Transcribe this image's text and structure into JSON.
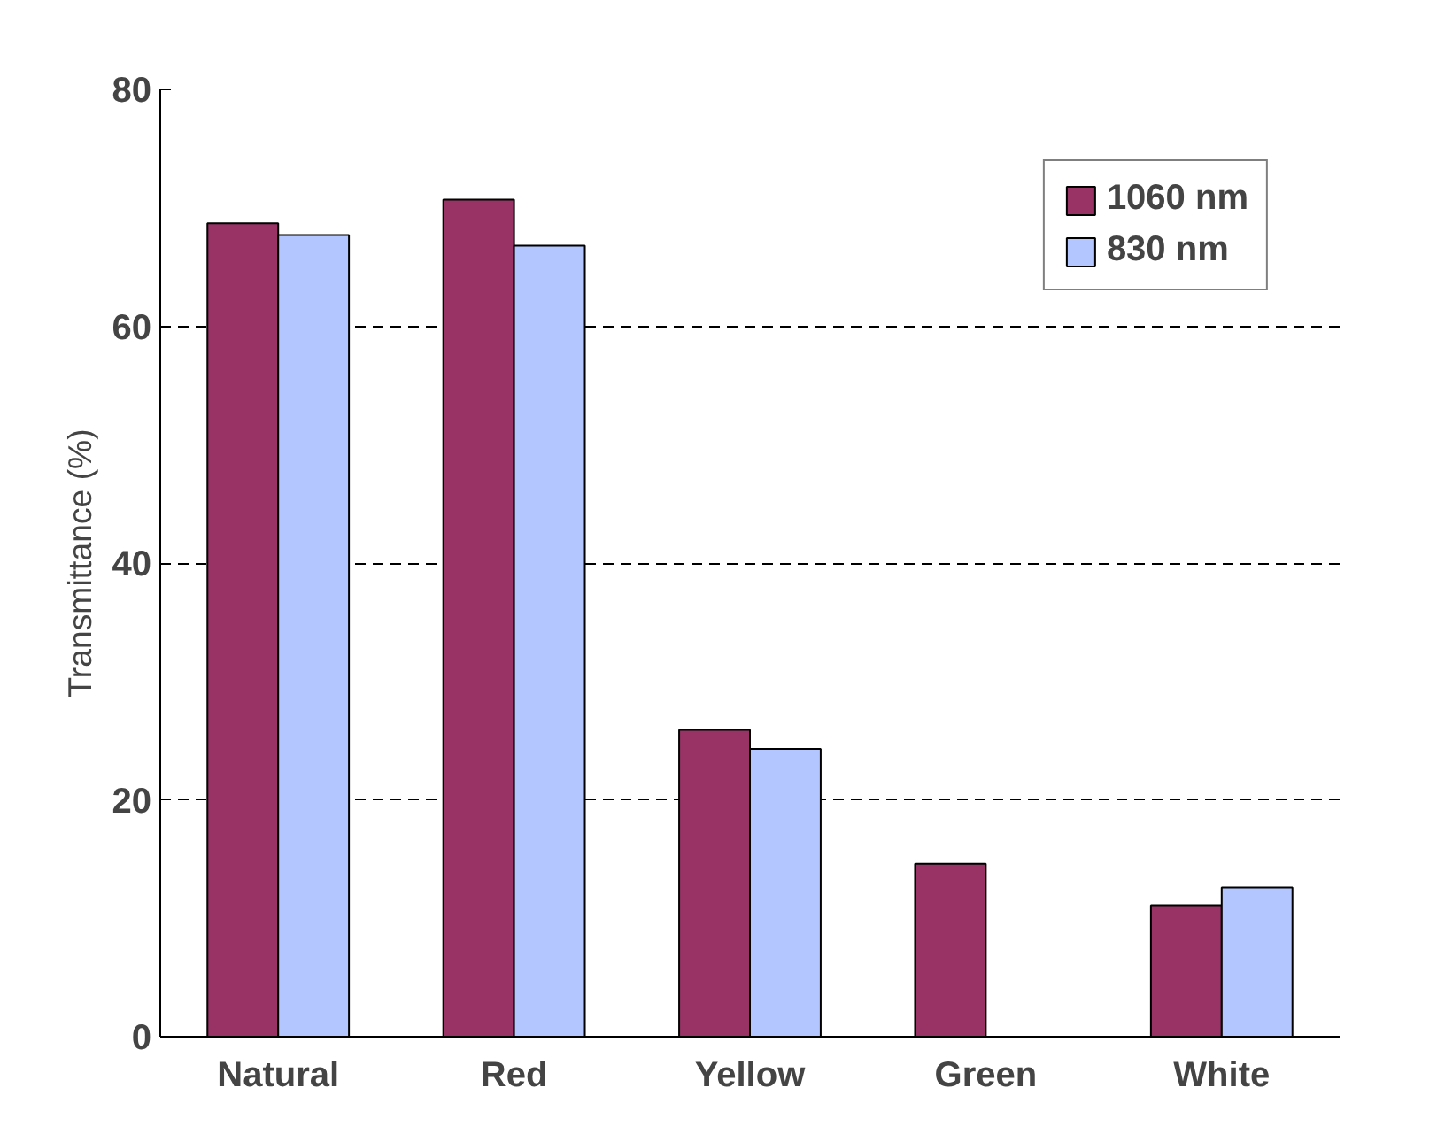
{
  "chart_data": {
    "type": "bar",
    "ylabel": "Transmittance (%)",
    "categories": [
      "Natural",
      "Red",
      "Yellow",
      "Green",
      "White"
    ],
    "series": [
      {
        "name": "1060 nm",
        "color": "#993366",
        "values": [
          68.7,
          70.7,
          25.9,
          14.6,
          11.1
        ]
      },
      {
        "name": "830 nm",
        "color": "#b3c6ff",
        "values": [
          67.7,
          66.8,
          24.3,
          null,
          12.6
        ]
      }
    ],
    "ylim": [
      0,
      80
    ],
    "yticks": [
      0,
      20,
      40,
      60,
      80
    ],
    "grid": "y",
    "legend": "top right"
  }
}
